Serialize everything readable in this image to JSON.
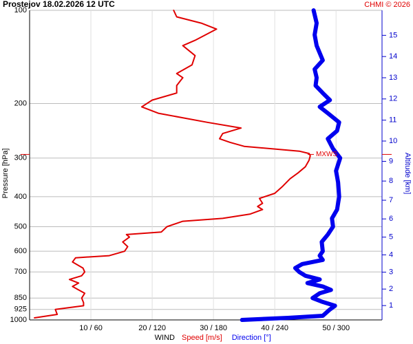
{
  "chart_data": {
    "type": "sounding",
    "title": "Prostejov   18.02.2026 12 UTC",
    "credit": "CHMI © 2026",
    "ylabel": "Pressure [hPa]",
    "y2label": "Altitude [km]",
    "xlabel": "WIND",
    "ylog": true,
    "ylim": [
      100,
      1000
    ],
    "yticks": [
      100,
      200,
      300,
      400,
      500,
      600,
      700,
      850,
      925,
      1000
    ],
    "xlim": [
      0,
      57.5
    ],
    "x2lim": [
      0,
      345
    ],
    "xticks": [
      {
        "value": 10,
        "label": "10 / 60"
      },
      {
        "value": 20,
        "label": "20 / 120"
      },
      {
        "value": 30,
        "label": "30 / 180"
      },
      {
        "value": 40,
        "label": "40 / 240"
      },
      {
        "value": 50,
        "label": "50 / 300"
      }
    ],
    "y2ticks": [
      1,
      2,
      3,
      4,
      5,
      6,
      7,
      8,
      9,
      10,
      11,
      12,
      13,
      14,
      15
    ],
    "grid": true,
    "max_wind": {
      "label": "MXWS",
      "pressure": 292
    },
    "series": [
      {
        "name": "Speed [m/s]",
        "color": "#e00000",
        "width": 2,
        "pressure": [
          985,
          960,
          925,
          900,
          880,
          850,
          820,
          800,
          780,
          760,
          740,
          720,
          700,
          680,
          650,
          630,
          620,
          600,
          580,
          560,
          540,
          530,
          520,
          500,
          480,
          470,
          455,
          440,
          430,
          420,
          405,
          390,
          370,
          350,
          335,
          320,
          305,
          295,
          290,
          285,
          275,
          267,
          260,
          250,
          240,
          230,
          215,
          205,
          195,
          185,
          175,
          165,
          160,
          150,
          140,
          130,
          125,
          115,
          110,
          105,
          100
        ],
        "values": [
          0.8,
          4.5,
          4.2,
          8.8,
          8.8,
          8.5,
          9.0,
          8.0,
          7.0,
          8.0,
          6.5,
          8.5,
          9.0,
          8.7,
          7.0,
          7.5,
          13,
          15.5,
          16.0,
          15.2,
          16.3,
          15.8,
          21.5,
          22.4,
          25.0,
          31.5,
          36,
          38,
          37.2,
          38,
          37.5,
          40,
          41.3,
          42.5,
          43.8,
          45.0,
          45.6,
          45.8,
          45.6,
          44,
          35,
          32.7,
          31,
          31.5,
          34.5,
          29,
          21,
          18.3,
          20,
          24,
          24,
          25,
          24,
          26.5,
          27,
          25,
          27,
          30.5,
          28,
          24,
          23.5
        ]
      },
      {
        "name": "Direction [°]",
        "color": "#0000ee",
        "width": 6,
        "axis": "x2",
        "pressure": [
          1000,
          985,
          970,
          950,
          925,
          900,
          875,
          850,
          820,
          800,
          780,
          760,
          740,
          720,
          700,
          680,
          660,
          640,
          620,
          600,
          560,
          530,
          500,
          470,
          440,
          400,
          360,
          330,
          300,
          280,
          260,
          245,
          230,
          215,
          205,
          195,
          185,
          175,
          165,
          155,
          145,
          130,
          120,
          110,
          100
        ],
        "values": [
          208,
          253,
          287,
          290,
          294,
          299,
          287,
          277,
          284,
          295,
          287,
          272,
          284,
          270,
          264,
          260,
          267,
          287,
          284,
          287,
          286,
          292,
          297,
          296,
          301,
          303,
          302,
          300,
          304,
          297,
          292,
          301,
          303,
          292,
          284,
          294,
          287,
          280,
          281,
          279,
          287,
          281,
          279,
          281,
          278
        ]
      }
    ]
  }
}
